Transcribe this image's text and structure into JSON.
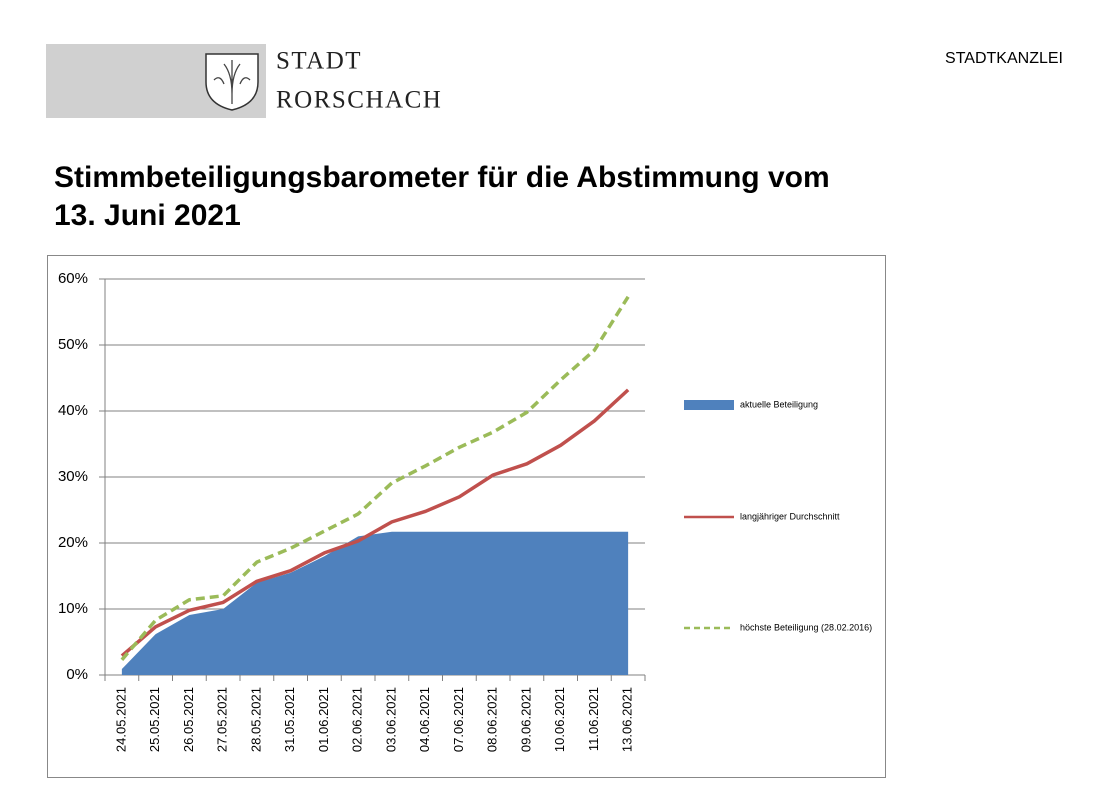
{
  "header": {
    "logo_lines": [
      "STADT",
      "RORSCHACH"
    ],
    "department": "STADTKANZLEI"
  },
  "title_lines": [
    "Stimmbeteiligungsbarometer für die Abstimmung vom",
    "13. Juni 2021"
  ],
  "chart_data": {
    "type": "area-line",
    "categories": [
      "24.05.2021",
      "25.05.2021",
      "26.05.2021",
      "27.05.2021",
      "28.05.2021",
      "31.05.2021",
      "01.06.2021",
      "02.06.2021",
      "03.06.2021",
      "04.06.2021",
      "07.06.2021",
      "08.06.2021",
      "09.06.2021",
      "10.06.2021",
      "11.06.2021",
      "13.06.2021"
    ],
    "series": [
      {
        "name": "aktuelle Beteiligung",
        "type": "area",
        "color": "#4f81bd",
        "values": [
          0.9,
          6.2,
          9.1,
          10,
          14,
          15.5,
          18,
          21,
          21.7,
          21.7,
          21.7,
          21.7,
          21.7,
          21.7,
          21.7,
          21.7
        ]
      },
      {
        "name": "langjähriger Durchschnitt",
        "type": "line",
        "color": "#c0504d",
        "values": [
          2.9,
          7.3,
          9.8,
          11,
          14.2,
          15.8,
          18.5,
          20.3,
          23.2,
          24.8,
          27,
          30.3,
          32,
          34.8,
          38.5,
          43.2
        ]
      },
      {
        "name": "höchste Beteiligung (28.02.2016)",
        "type": "dashed-line",
        "color": "#9bbb59",
        "values": [
          2.3,
          8.3,
          11.4,
          12,
          17.1,
          19.2,
          21.8,
          24.4,
          29.1,
          31.7,
          34.5,
          36.8,
          39.8,
          44.7,
          49.2,
          57.3
        ]
      }
    ],
    "ylim": [
      0,
      60
    ],
    "yticks": [
      {
        "value": 0,
        "label": "0%"
      },
      {
        "value": 10,
        "label": "10%"
      },
      {
        "value": 20,
        "label": "20%"
      },
      {
        "value": 30,
        "label": "30%"
      },
      {
        "value": 40,
        "label": "40%"
      },
      {
        "value": 50,
        "label": "50%"
      },
      {
        "value": 60,
        "label": "60%"
      }
    ],
    "grid": true,
    "legend": "right"
  }
}
